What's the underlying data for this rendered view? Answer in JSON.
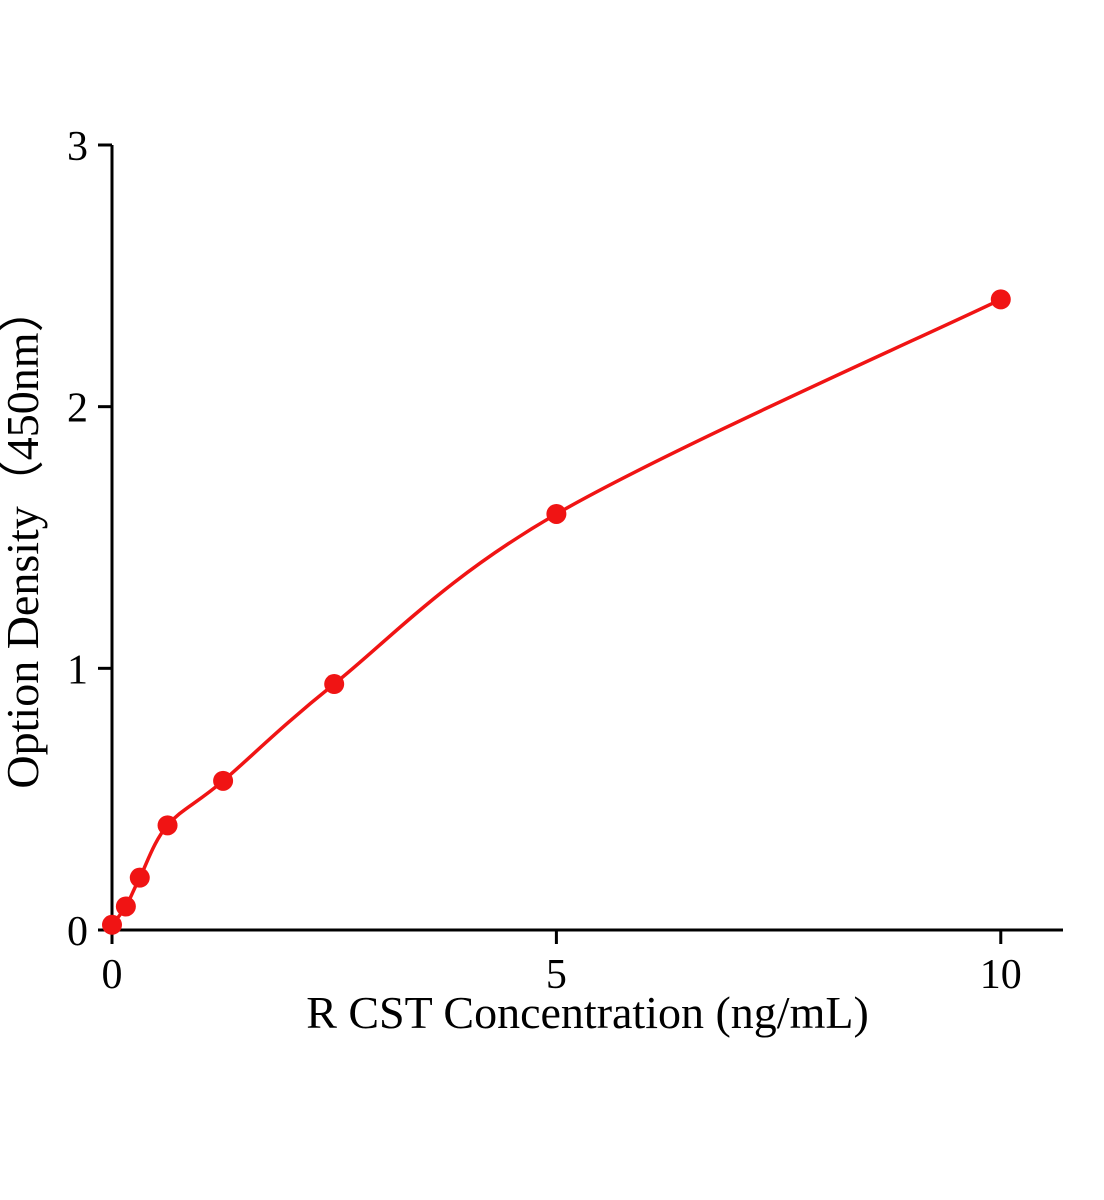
{
  "page": {
    "background": "#ffffff"
  },
  "chart_data": {
    "type": "scatter",
    "title": "",
    "xlabel": "R CST Concentration (ng/mL)",
    "ylabel": "Option Density（450nm）",
    "x": [
      0,
      0.156,
      0.3125,
      0.625,
      1.25,
      2.5,
      5,
      10
    ],
    "y": [
      0.02,
      0.09,
      0.2,
      0.4,
      0.57,
      0.94,
      1.59,
      2.41
    ],
    "xlim": [
      0,
      10.7
    ],
    "ylim": [
      0,
      3
    ],
    "xticks": [
      0,
      5,
      10
    ],
    "yticks": [
      0,
      1,
      2,
      3
    ],
    "grid": false,
    "legend_position": "none",
    "line_color": "#f01414",
    "marker_color": "#f01414",
    "axis_color": "#000000",
    "marker_radius": 10,
    "line_width": 3.5,
    "axis_width": 3
  }
}
